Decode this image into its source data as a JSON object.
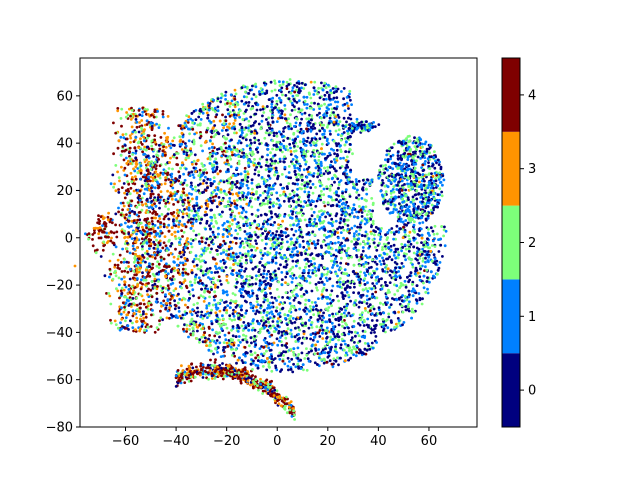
{
  "chart_data": {
    "type": "scatter",
    "title": "",
    "xlabel": "",
    "ylabel": "",
    "xlim": [
      -78,
      79
    ],
    "ylim": [
      -80,
      76
    ],
    "x_ticks": [
      -60,
      -40,
      -20,
      0,
      20,
      40,
      60
    ],
    "x_tick_labels": [
      "−60",
      "−40",
      "−20",
      "0",
      "20",
      "40",
      "60"
    ],
    "y_ticks": [
      -80,
      -60,
      -40,
      -20,
      0,
      20,
      40,
      60
    ],
    "y_tick_labels": [
      "−80",
      "−60",
      "−40",
      "−20",
      "0",
      "20",
      "40",
      "60"
    ],
    "grid": false,
    "colorbar": {
      "ticks": [
        0,
        1,
        2,
        3,
        4
      ],
      "tick_labels": [
        "0",
        "1",
        "2",
        "3",
        "4"
      ],
      "colors": [
        "#00007f",
        "#0080ff",
        "#7dff7a",
        "#ff9400",
        "#7f0000"
      ]
    },
    "point_count": 9000,
    "clusters": [
      {
        "region": "main cloud",
        "center": [
          5,
          8
        ],
        "radius": [
          55,
          60
        ],
        "dominant_classes": [
          0,
          1,
          2
        ]
      },
      {
        "region": "upper-right island",
        "center": [
          55,
          20
        ],
        "radius": [
          13,
          22
        ],
        "dominant_classes": [
          0,
          1,
          2
        ]
      },
      {
        "region": "top-right islet",
        "center": [
          33,
          47
        ],
        "radius": [
          6,
          3
        ],
        "dominant_classes": [
          0,
          1
        ]
      },
      {
        "region": "bottom arc",
        "center": [
          -20,
          -60
        ],
        "radius": [
          25,
          6
        ],
        "dominant_classes": [
          4,
          3
        ]
      },
      {
        "region": "left edge",
        "center": [
          -55,
          -10
        ],
        "radius": [
          10,
          45
        ],
        "dominant_classes": [
          4,
          3,
          2
        ]
      },
      {
        "region": "far-left blob",
        "center": [
          -70,
          2
        ],
        "radius": [
          4,
          6
        ],
        "dominant_classes": [
          4,
          3
        ]
      }
    ]
  }
}
